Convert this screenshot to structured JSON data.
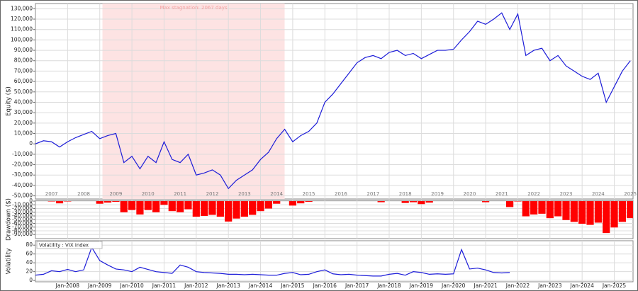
{
  "chart_data": [
    {
      "type": "line",
      "y_label": "Equity ($)",
      "annotation": "Max stagnation: 2067 days",
      "shade": [
        "2009-02",
        "2014-10"
      ],
      "year_labels": [
        "2007",
        "2008",
        "2009",
        "2010",
        "2011",
        "2012",
        "2013",
        "2014",
        "2015",
        "2016",
        "2017",
        "2018",
        "2019",
        "2020",
        "2021",
        "2022",
        "2023",
        "2024",
        "2025"
      ],
      "xlim": [
        "2007-01",
        "2025-08"
      ],
      "ylim": [
        -53000,
        135000
      ],
      "grid": true,
      "yticks": [
        {
          "value": -50000,
          "label": "-50,000"
        },
        {
          "value": -40000,
          "label": "-40,000"
        },
        {
          "value": -30000,
          "label": "-30,000"
        },
        {
          "value": -20000,
          "label": "-20,000"
        },
        {
          "value": -10000,
          "label": "-10,000"
        },
        0,
        {
          "value": 10000,
          "label": "10,000"
        },
        {
          "value": 20000,
          "label": "20,000"
        },
        {
          "value": 30000,
          "label": "30,000"
        },
        {
          "value": 40000,
          "label": "40,000"
        },
        {
          "value": 50000,
          "label": "50,000"
        },
        {
          "value": 60000,
          "label": "60,000"
        },
        {
          "value": 70000,
          "label": "70,000"
        },
        {
          "value": 80000,
          "label": "80,000"
        },
        {
          "value": 90000,
          "label": "90,000"
        },
        {
          "value": 100000,
          "label": "100,000"
        },
        {
          "value": 110000,
          "label": "110,000"
        },
        {
          "value": 120000,
          "label": "120,000"
        },
        {
          "value": 130000,
          "label": "130,000"
        }
      ],
      "x": [
        "2007-01",
        "2007-04",
        "2007-07",
        "2007-10",
        "2008-01",
        "2008-04",
        "2008-07",
        "2008-10",
        "2009-01",
        "2009-04",
        "2009-07",
        "2009-10",
        "2010-01",
        "2010-04",
        "2010-07",
        "2010-10",
        "2011-01",
        "2011-04",
        "2011-07",
        "2011-10",
        "2012-01",
        "2012-04",
        "2012-07",
        "2012-10",
        "2013-01",
        "2013-04",
        "2013-07",
        "2013-10",
        "2014-01",
        "2014-04",
        "2014-07",
        "2014-10",
        "2015-01",
        "2015-04",
        "2015-07",
        "2015-10",
        "2016-01",
        "2016-04",
        "2016-07",
        "2016-10",
        "2017-01",
        "2017-04",
        "2017-07",
        "2017-10",
        "2018-01",
        "2018-04",
        "2018-07",
        "2018-10",
        "2019-01",
        "2019-04",
        "2019-07",
        "2019-10",
        "2020-01",
        "2020-04",
        "2020-07",
        "2020-10",
        "2021-01",
        "2021-04",
        "2021-07",
        "2021-10",
        "2022-01",
        "2022-04",
        "2022-07",
        "2022-10",
        "2023-01",
        "2023-04",
        "2023-07",
        "2023-10",
        "2024-01",
        "2024-04",
        "2024-07",
        "2024-10",
        "2025-01",
        "2025-04",
        "2025-07"
      ],
      "color": "#1c1cd8",
      "values": [
        0,
        3000,
        2000,
        -3000,
        2000,
        6000,
        9000,
        12000,
        5000,
        8000,
        10000,
        -18000,
        -12000,
        -24000,
        -12000,
        -18000,
        2000,
        -15000,
        -18000,
        -10000,
        -30000,
        -28000,
        -25000,
        -30000,
        -43000,
        -35000,
        -30000,
        -25000,
        -15000,
        -8000,
        5000,
        14000,
        2000,
        8000,
        12000,
        20000,
        40000,
        48000,
        58000,
        68000,
        78000,
        83000,
        85000,
        82000,
        88000,
        90000,
        85000,
        87000,
        82000,
        86000,
        90000,
        90000,
        91000,
        100000,
        108000,
        118000,
        115000,
        120000,
        126000,
        110000,
        125000,
        85000,
        90000,
        92000,
        80000,
        85000,
        75000,
        70000,
        65000,
        62000,
        68000,
        40000,
        55000,
        70000,
        80000
      ]
    },
    {
      "type": "bar",
      "y_label": "Drawdown ($)",
      "xlim": [
        "2007-01",
        "2025-08"
      ],
      "ylim": [
        -101000,
        2000
      ],
      "grid": true,
      "yticks": [
        0,
        {
          "value": -10000,
          "label": "-10,000"
        },
        {
          "value": -20000,
          "label": "-20,000"
        },
        {
          "value": -30000,
          "label": "-30,000"
        },
        {
          "value": -40000,
          "label": "-40,000"
        },
        {
          "value": -50000,
          "label": "-50,000"
        },
        {
          "value": -60000,
          "label": "-60,000"
        },
        {
          "value": -70000,
          "label": "-70,000"
        },
        {
          "value": -80000,
          "label": "-80,000"
        },
        {
          "value": -90000,
          "label": "-90,000"
        }
      ],
      "x": [
        "2007-01",
        "2007-04",
        "2007-07",
        "2007-10",
        "2008-01",
        "2008-04",
        "2008-07",
        "2008-10",
        "2009-01",
        "2009-04",
        "2009-07",
        "2009-10",
        "2010-01",
        "2010-04",
        "2010-07",
        "2010-10",
        "2011-01",
        "2011-04",
        "2011-07",
        "2011-10",
        "2012-01",
        "2012-04",
        "2012-07",
        "2012-10",
        "2013-01",
        "2013-04",
        "2013-07",
        "2013-10",
        "2014-01",
        "2014-04",
        "2014-07",
        "2014-10",
        "2015-01",
        "2015-04",
        "2015-07",
        "2015-10",
        "2016-01",
        "2016-04",
        "2016-07",
        "2016-10",
        "2017-01",
        "2017-04",
        "2017-07",
        "2017-10",
        "2018-01",
        "2018-04",
        "2018-07",
        "2018-10",
        "2019-01",
        "2019-04",
        "2019-07",
        "2019-10",
        "2020-01",
        "2020-04",
        "2020-07",
        "2020-10",
        "2021-01",
        "2021-04",
        "2021-07",
        "2021-10",
        "2022-01",
        "2022-04",
        "2022-07",
        "2022-10",
        "2023-01",
        "2023-04",
        "2023-07",
        "2023-10",
        "2024-01",
        "2024-04",
        "2024-07",
        "2024-10",
        "2025-01",
        "2025-04",
        "2025-07"
      ],
      "color": "#ff0000",
      "values": [
        0,
        0,
        -1000,
        -6000,
        -1000,
        0,
        0,
        0,
        -7000,
        -4000,
        -2000,
        -30000,
        -24000,
        -36000,
        -24000,
        -30000,
        -10000,
        -27000,
        -30000,
        -22000,
        -42000,
        -40000,
        -37000,
        -42000,
        -55000,
        -47000,
        -42000,
        -37000,
        -27000,
        -20000,
        -7000,
        0,
        -12000,
        -6000,
        -2000,
        0,
        0,
        0,
        0,
        0,
        0,
        0,
        0,
        -3000,
        0,
        0,
        -5000,
        -3000,
        -8000,
        -4000,
        0,
        0,
        0,
        0,
        0,
        0,
        -3000,
        0,
        0,
        -16000,
        -1000,
        -41000,
        -36000,
        -34000,
        -46000,
        -41000,
        -51000,
        -56000,
        -61000,
        -64000,
        -58000,
        -86000,
        -71000,
        -56000,
        -46000
      ]
    },
    {
      "type": "line",
      "y_label": "Volatility",
      "legend": "Volatility : VIX index",
      "xlim": [
        "2007-01",
        "2025-08"
      ],
      "ylim": [
        -3,
        90
      ],
      "grid": true,
      "yticks": [
        0,
        20,
        40,
        60,
        80
      ],
      "xticks": [
        {
          "value": "2008-01",
          "label": "Jan-2008"
        },
        {
          "value": "2009-01",
          "label": "Jan-2009"
        },
        {
          "value": "2010-01",
          "label": "Jan-2010"
        },
        {
          "value": "2011-01",
          "label": "Jan-2011"
        },
        {
          "value": "2012-01",
          "label": "Jan-2012"
        },
        {
          "value": "2013-01",
          "label": "Jan-2013"
        },
        {
          "value": "2014-01",
          "label": "Jan-2014"
        },
        {
          "value": "2015-01",
          "label": "Jan-2015"
        },
        {
          "value": "2016-01",
          "label": "Jan-2016"
        },
        {
          "value": "2017-01",
          "label": "Jan-2017"
        },
        {
          "value": "2018-01",
          "label": "Jan-2018"
        },
        {
          "value": "2019-01",
          "label": "Jan-2019"
        },
        {
          "value": "2020-01",
          "label": "Jan-2020"
        },
        {
          "value": "2021-01",
          "label": "Jan-2021"
        },
        {
          "value": "2022-01",
          "label": "Jan-2022"
        },
        {
          "value": "2023-01",
          "label": "Jan-2023"
        },
        {
          "value": "2024-01",
          "label": "Jan-2024"
        },
        {
          "value": "2025-01",
          "label": "Jan-2025"
        }
      ],
      "x": [
        "2007-01",
        "2007-04",
        "2007-07",
        "2007-10",
        "2008-01",
        "2008-04",
        "2008-07",
        "2008-10",
        "2009-01",
        "2009-04",
        "2009-07",
        "2009-10",
        "2010-01",
        "2010-04",
        "2010-07",
        "2010-10",
        "2011-01",
        "2011-04",
        "2011-07",
        "2011-10",
        "2012-01",
        "2012-04",
        "2012-07",
        "2012-10",
        "2013-01",
        "2013-04",
        "2013-07",
        "2013-10",
        "2014-01",
        "2014-04",
        "2014-07",
        "2014-10",
        "2015-01",
        "2015-04",
        "2015-07",
        "2015-10",
        "2016-01",
        "2016-04",
        "2016-07",
        "2016-10",
        "2017-01",
        "2017-04",
        "2017-07",
        "2017-10",
        "2018-01",
        "2018-04",
        "2018-07",
        "2018-10",
        "2019-01",
        "2019-04",
        "2019-07",
        "2019-10",
        "2020-01",
        "2020-04",
        "2020-07",
        "2020-10",
        "2021-01",
        "2021-04",
        "2021-07",
        "2021-10",
        "2022-01",
        "2022-04",
        "2022-07",
        "2022-10",
        "2023-01",
        "2023-04",
        "2023-07",
        "2023-10",
        "2024-01",
        "2024-04",
        "2024-07",
        "2024-10",
        "2025-01",
        "2025-04",
        "2025-07"
      ],
      "color": "#1c1cd8",
      "values": [
        12,
        14,
        22,
        20,
        25,
        20,
        24,
        75,
        45,
        35,
        26,
        24,
        20,
        30,
        25,
        20,
        18,
        16,
        35,
        30,
        20,
        18,
        17,
        16,
        14,
        14,
        13,
        14,
        13,
        12,
        12,
        16,
        18,
        13,
        14,
        20,
        24,
        15,
        13,
        14,
        12,
        11,
        10,
        10,
        14,
        16,
        12,
        20,
        18,
        14,
        15,
        14,
        15,
        70,
        26,
        28,
        24,
        18,
        17,
        18,
        null,
        null,
        null,
        null,
        null,
        null,
        null,
        null,
        null,
        null,
        null,
        null,
        null,
        null,
        null
      ]
    }
  ]
}
